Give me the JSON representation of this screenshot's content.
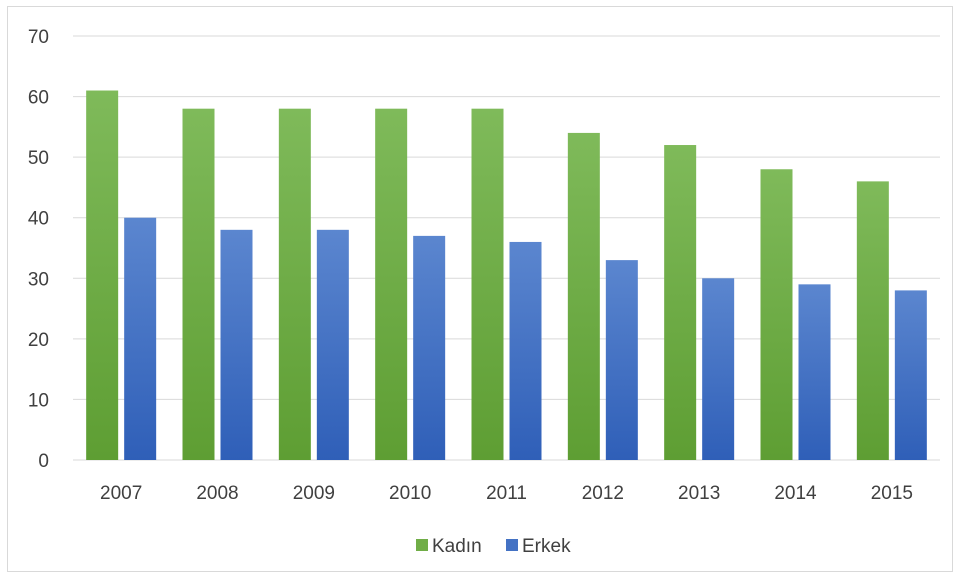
{
  "chart_data": {
    "type": "bar",
    "categories": [
      "2007",
      "2008",
      "2009",
      "2010",
      "2011",
      "2012",
      "2013",
      "2014",
      "2015"
    ],
    "series": [
      {
        "name": "Kadın",
        "values": [
          61,
          58,
          58,
          58,
          58,
          54,
          52,
          48,
          46
        ],
        "color": "#70ad47"
      },
      {
        "name": "Erkek",
        "values": [
          40,
          38,
          38,
          37,
          36,
          33,
          30,
          29,
          28
        ],
        "color": "#4472c4"
      }
    ],
    "ylim": [
      0,
      70
    ],
    "yticks": [
      "0",
      "10",
      "20",
      "30",
      "40",
      "50",
      "60",
      "70"
    ],
    "grid": true,
    "legend_position": "bottom"
  }
}
